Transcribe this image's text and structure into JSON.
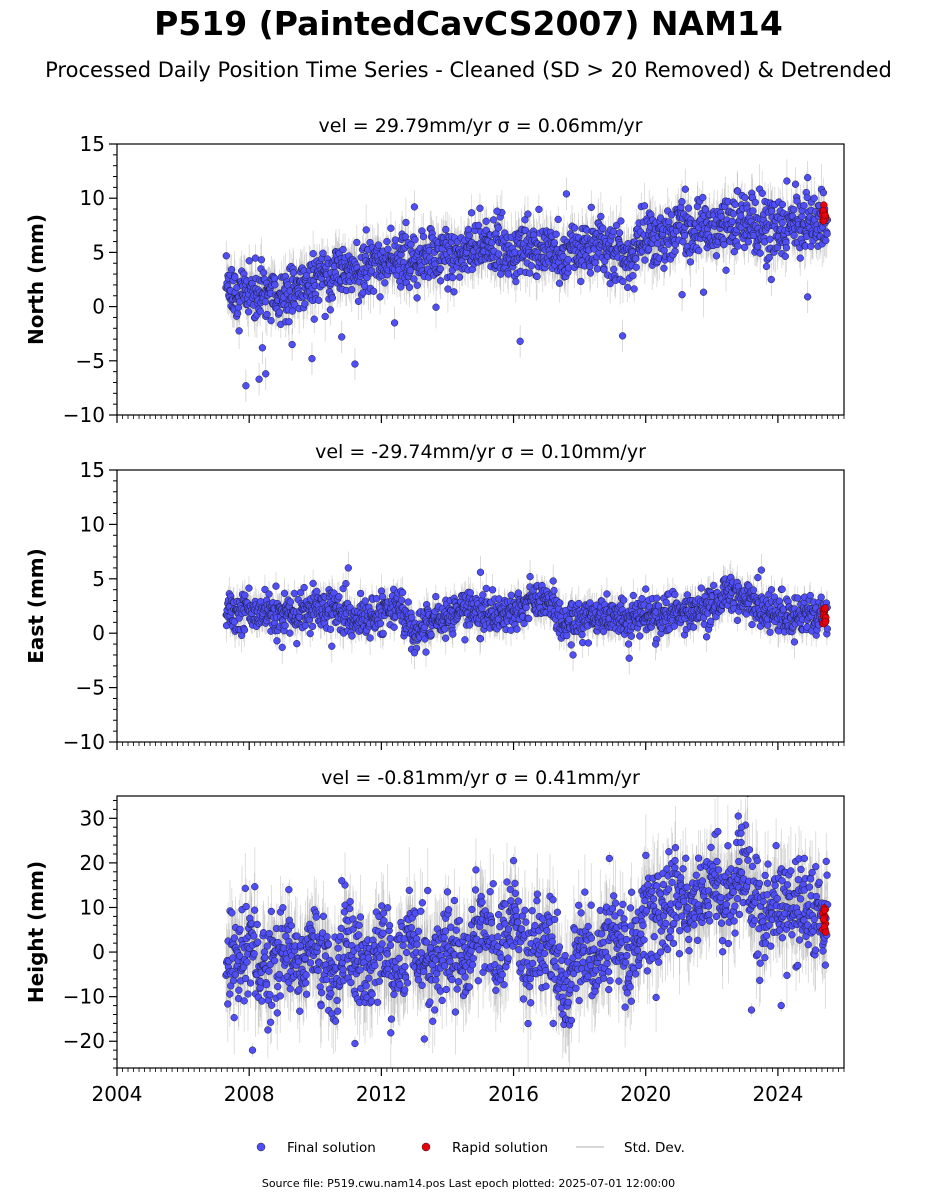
{
  "figure": {
    "title": "P519 (PaintedCavCS2007) NAM14",
    "subtitle": "Processed Daily Position Time Series - Cleaned (SD > 20 Removed) & Detrended",
    "footer": "Source file: P519.cwu.nam14.pos  Last epoch plotted: 2025-07-01 12:00:00"
  },
  "legend": {
    "placement": "bottom-center",
    "items": [
      {
        "label": "Final solution",
        "color": "#4f4ff5",
        "marker": "circle"
      },
      {
        "label": "Rapid solution",
        "color": "#e8000b",
        "marker": "circle"
      },
      {
        "label": "Std. Dev.",
        "color": "#c8c8c8",
        "marker": "line"
      }
    ]
  },
  "colors": {
    "final": "#4f4ff5",
    "final_edge": "#1a1a40",
    "rapid": "#e8000b",
    "errorbar": "#8a8a8a"
  },
  "chart_data": [
    {
      "type": "scatter",
      "title": "vel = 29.79mm/yr   σ = 0.06mm/yr",
      "ylabel": "North (mm)",
      "xlabel": "",
      "xlim": [
        2004,
        2026
      ],
      "ylim": [
        -10,
        15
      ],
      "yticks": [
        -10,
        -5,
        0,
        5,
        10,
        15
      ],
      "xticks": [
        2004,
        2008,
        2012,
        2016,
        2020,
        2024
      ],
      "show_xtick_labels": false,
      "grid": false,
      "data_range": [
        2007.3,
        2025.5
      ],
      "final_solution": {
        "x": [
          2007.5,
          2008.0,
          2008.5,
          2009.0,
          2009.5,
          2010.0,
          2010.5,
          2011.0,
          2011.5,
          2012.0,
          2012.5,
          2013.0,
          2013.5,
          2014.0,
          2014.5,
          2015.0,
          2015.5,
          2016.0,
          2016.5,
          2017.0,
          2017.5,
          2018.0,
          2018.5,
          2019.0,
          2019.5,
          2020.0,
          2020.5,
          2021.0,
          2021.5,
          2022.0,
          2022.5,
          2023.0,
          2023.5,
          2024.0,
          2024.5,
          2025.0,
          2025.3
        ],
        "y": [
          1.0,
          1.5,
          1.2,
          1.0,
          1.5,
          2.5,
          3.0,
          3.8,
          3.5,
          4.0,
          4.3,
          4.0,
          4.2,
          4.5,
          5.0,
          5.8,
          5.5,
          5.0,
          5.2,
          5.6,
          4.5,
          5.0,
          5.2,
          5.0,
          4.5,
          6.5,
          6.0,
          7.0,
          7.2,
          7.0,
          7.5,
          7.8,
          7.0,
          7.5,
          7.2,
          7.5,
          7.8
        ],
        "spread": 1.3,
        "outliers": [
          {
            "x": 2007.9,
            "y": -7.3
          },
          {
            "x": 2008.3,
            "y": -6.7
          },
          {
            "x": 2008.5,
            "y": -6.2
          },
          {
            "x": 2008.4,
            "y": -3.8
          },
          {
            "x": 2009.3,
            "y": -3.5
          },
          {
            "x": 2009.9,
            "y": -4.8
          },
          {
            "x": 2011.2,
            "y": -5.3
          },
          {
            "x": 2010.8,
            "y": -2.8
          },
          {
            "x": 2016.2,
            "y": -3.2
          },
          {
            "x": 2019.3,
            "y": -2.7
          },
          {
            "x": 2017.6,
            "y": 10.4
          },
          {
            "x": 2013.0,
            "y": 9.2
          },
          {
            "x": 2024.9,
            "y": 11.9
          },
          {
            "x": 2021.1,
            "y": 1.1
          },
          {
            "x": 2024.9,
            "y": 0.9
          },
          {
            "x": 2023.8,
            "y": 2.5
          },
          {
            "x": 2012.4,
            "y": -1.5
          },
          {
            "x": 2015.5,
            "y": 8.8
          }
        ]
      },
      "rapid_solution": {
        "x": [
          2025.35,
          2025.45
        ],
        "y": [
          7.8,
          9.4
        ]
      }
    },
    {
      "type": "scatter",
      "title": "vel = -29.74mm/yr   σ = 0.10mm/yr",
      "ylabel": "East (mm)",
      "xlabel": "",
      "xlim": [
        2004,
        2026
      ],
      "ylim": [
        -10,
        15
      ],
      "yticks": [
        -10,
        -5,
        0,
        5,
        10,
        15
      ],
      "xticks": [
        2004,
        2008,
        2012,
        2016,
        2020,
        2024
      ],
      "show_xtick_labels": false,
      "grid": false,
      "data_range": [
        2007.3,
        2025.5
      ],
      "final_solution": {
        "x": [
          2007.5,
          2008.0,
          2008.5,
          2009.0,
          2009.5,
          2010.0,
          2010.5,
          2011.0,
          2011.5,
          2012.0,
          2012.5,
          2013.0,
          2013.5,
          2014.0,
          2014.5,
          2015.0,
          2015.5,
          2016.0,
          2016.5,
          2017.0,
          2017.5,
          2018.0,
          2018.5,
          2019.0,
          2019.5,
          2020.0,
          2020.5,
          2021.0,
          2021.5,
          2022.0,
          2022.5,
          2023.0,
          2023.5,
          2024.0,
          2024.5,
          2025.0,
          2025.3
        ],
        "y": [
          1.8,
          2.0,
          1.8,
          1.8,
          2.0,
          2.2,
          2.0,
          1.5,
          1.5,
          1.5,
          2.5,
          0.0,
          1.0,
          1.5,
          2.0,
          2.0,
          1.8,
          2.0,
          2.8,
          3.5,
          1.0,
          1.2,
          1.5,
          1.5,
          1.2,
          2.0,
          1.5,
          2.0,
          2.2,
          2.5,
          3.8,
          3.0,
          2.0,
          1.8,
          1.5,
          1.5,
          1.8
        ],
        "spread": 0.9,
        "outliers": [
          {
            "x": 2011.0,
            "y": 6.0
          },
          {
            "x": 2015.0,
            "y": 5.6
          },
          {
            "x": 2023.5,
            "y": 5.8
          },
          {
            "x": 2019.5,
            "y": -2.3
          },
          {
            "x": 2013.0,
            "y": -1.8
          },
          {
            "x": 2017.8,
            "y": -2.0
          },
          {
            "x": 2009.0,
            "y": -1.3
          },
          {
            "x": 2016.5,
            "y": 5.2
          },
          {
            "x": 2010.5,
            "y": -1.2
          },
          {
            "x": 2024.5,
            "y": -0.8
          },
          {
            "x": 2020.3,
            "y": -1.0
          },
          {
            "x": 2017.2,
            "y": 4.8
          }
        ]
      },
      "rapid_solution": {
        "x": [
          2025.35,
          2025.45
        ],
        "y": [
          0.8,
          2.8
        ]
      }
    },
    {
      "type": "scatter",
      "title": "vel = -0.81mm/yr   σ = 0.41mm/yr",
      "ylabel": "Height (mm)",
      "xlabel": "",
      "xlim": [
        2004,
        2026
      ],
      "ylim": [
        -26,
        35
      ],
      "yticks": [
        -20,
        -10,
        0,
        10,
        20,
        30
      ],
      "xticks": [
        2004,
        2008,
        2012,
        2016,
        2020,
        2024
      ],
      "show_xtick_labels": true,
      "grid": false,
      "data_range": [
        2007.3,
        2025.5
      ],
      "final_solution": {
        "x": [
          2007.5,
          2008.0,
          2008.5,
          2009.0,
          2009.5,
          2010.0,
          2010.5,
          2011.0,
          2011.5,
          2012.0,
          2012.5,
          2013.0,
          2013.5,
          2014.0,
          2014.5,
          2015.0,
          2015.5,
          2016.0,
          2016.5,
          2017.0,
          2017.5,
          2018.0,
          2018.5,
          2019.0,
          2019.5,
          2020.0,
          2020.5,
          2021.0,
          2021.5,
          2022.0,
          2022.5,
          2023.0,
          2023.5,
          2024.0,
          2024.5,
          2025.0,
          2025.3
        ],
        "y": [
          -3,
          2,
          -5,
          0,
          -3,
          3,
          -8,
          2,
          -6,
          0,
          -3,
          5,
          -5,
          3,
          -4,
          6,
          -2,
          8,
          -4,
          4,
          -10,
          0,
          -3,
          5,
          -2,
          9,
          8,
          12,
          10,
          14,
          11,
          20,
          5,
          12,
          8,
          10,
          6
        ],
        "spread": 5.5,
        "outliers": [
          {
            "x": 2008.1,
            "y": -22.0
          },
          {
            "x": 2011.2,
            "y": -20.5
          },
          {
            "x": 2013.3,
            "y": -19.5
          },
          {
            "x": 2017.2,
            "y": -16.0
          },
          {
            "x": 2022.8,
            "y": 30.5
          },
          {
            "x": 2022.9,
            "y": 28.0
          },
          {
            "x": 2018.9,
            "y": 21.0
          },
          {
            "x": 2023.2,
            "y": -13.0
          },
          {
            "x": 2024.1,
            "y": -12.0
          },
          {
            "x": 2016.0,
            "y": 20.5
          },
          {
            "x": 2009.2,
            "y": 14.0
          },
          {
            "x": 2010.8,
            "y": 16.0
          },
          {
            "x": 2014.0,
            "y": 13.5
          },
          {
            "x": 2020.7,
            "y": 22.5
          },
          {
            "x": 2024.8,
            "y": 21.0
          },
          {
            "x": 2024.6,
            "y": -3.0
          }
        ]
      },
      "rapid_solution": {
        "x": [
          2025.35,
          2025.45
        ],
        "y": [
          3.0,
          11.0
        ]
      }
    }
  ]
}
